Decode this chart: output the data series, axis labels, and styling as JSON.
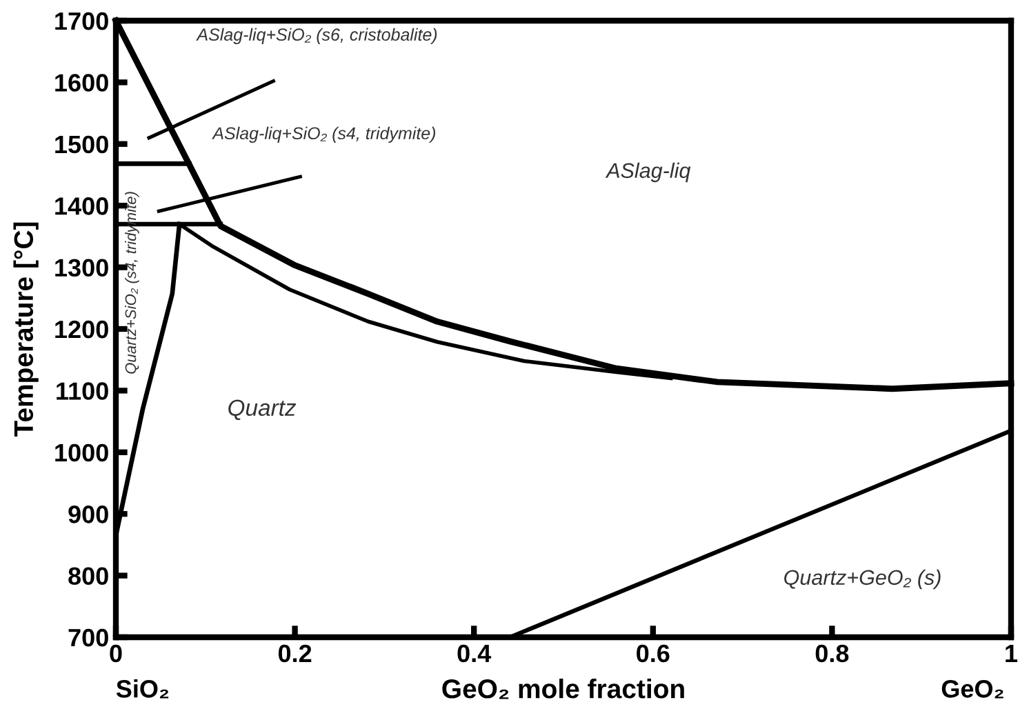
{
  "chart_data": {
    "type": "line",
    "xlabel": "GeO₂ mole fraction",
    "ylabel": "Temperature [°C]",
    "xlim": [
      0,
      1
    ],
    "ylim": [
      700,
      1700
    ],
    "xticks": [
      0,
      0.2,
      0.4,
      0.6,
      0.8,
      1
    ],
    "yticks": [
      700,
      800,
      900,
      1000,
      1100,
      1200,
      1300,
      1400,
      1500,
      1600,
      1700
    ],
    "grid": false,
    "marker": "none",
    "line_style": "solid",
    "series": [
      {
        "color": "#000000",
        "x": [
          0,
          0.117,
          0.199,
          0.282,
          0.359,
          0.44,
          0.559,
          0.672,
          0.867,
          1
        ],
        "values": [
          1700,
          1367,
          1304,
          1257,
          1212,
          1180,
          1136,
          1114,
          1103,
          1112
        ]
      },
      {
        "color": "#000000",
        "x": [
          0.071,
          0.107,
          0.194,
          0.282,
          0.359,
          0.456,
          0.559,
          0.62
        ],
        "values": [
          1370,
          1335,
          1264,
          1212,
          1179,
          1148,
          1130,
          1120
        ]
      },
      {
        "color": "#000000",
        "x": [
          0,
          0.03,
          0.063,
          0.071
        ],
        "values": [
          865,
          1070,
          1257,
          1370
        ]
      },
      {
        "color": "#000000",
        "x": [
          0,
          0.082
        ],
        "values": [
          1468,
          1468
        ]
      },
      {
        "color": "#000000",
        "x": [
          0,
          0.117
        ],
        "values": [
          1370,
          1370
        ]
      },
      {
        "color": "#000000",
        "x": [
          0.44,
          1
        ],
        "values": [
          700,
          1035
        ]
      },
      {
        "color": "#000000",
        "x": [
          0.037,
          0.176
        ],
        "values": [
          1510,
          1602
        ]
      },
      {
        "color": "#000000",
        "x": [
          0.048,
          0.206
        ],
        "values": [
          1391,
          1447
        ]
      }
    ],
    "annotations": [
      "ASlag-liq+SiO₂ (s6, cristobalite)",
      "ASlag-liq+SiO₂ (s4, tridymite)",
      "ASlag-liq",
      "Quartz",
      "Quartz+GeO₂ (s)",
      "Quartz+SiO₂ (s4, tridymite)",
      "SiO₂",
      "GeO₂"
    ]
  }
}
